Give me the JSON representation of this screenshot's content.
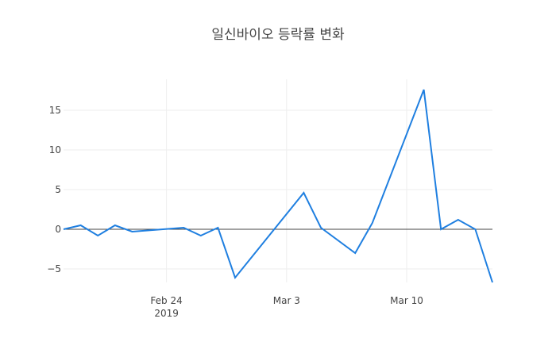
{
  "chart_data": {
    "type": "line",
    "title": "일신바이오 등락률 변화",
    "x": [
      "2019-02-18",
      "2019-02-19",
      "2019-02-20",
      "2019-02-21",
      "2019-02-22",
      "2019-02-25",
      "2019-02-26",
      "2019-02-27",
      "2019-02-28",
      "2019-03-04",
      "2019-03-05",
      "2019-03-07",
      "2019-03-08",
      "2019-03-11",
      "2019-03-12",
      "2019-03-13",
      "2019-03-14",
      "2019-03-15"
    ],
    "series": [
      {
        "color": "#1f7fe0",
        "values": [
          0,
          0.5,
          -0.8,
          0.5,
          -0.3,
          0.2,
          -0.8,
          0.2,
          -6.1,
          4.6,
          0.2,
          -3.0,
          0.8,
          17.6,
          0,
          1.2,
          0,
          -6.7
        ]
      }
    ],
    "xlim": [
      "2019-02-18",
      "2019-03-15"
    ],
    "xticks": [
      {
        "value": "2019-02-24",
        "label": "Feb 24\n2019"
      },
      {
        "value": "2019-03-03",
        "label": "Mar 3"
      },
      {
        "value": "2019-03-10",
        "label": "Mar 10"
      }
    ],
    "ylim": [
      -6.7,
      18.9
    ],
    "yticks": [
      {
        "value": -5,
        "label": "−5"
      },
      0,
      5,
      10,
      15
    ],
    "grid": true,
    "zeroline": true
  }
}
